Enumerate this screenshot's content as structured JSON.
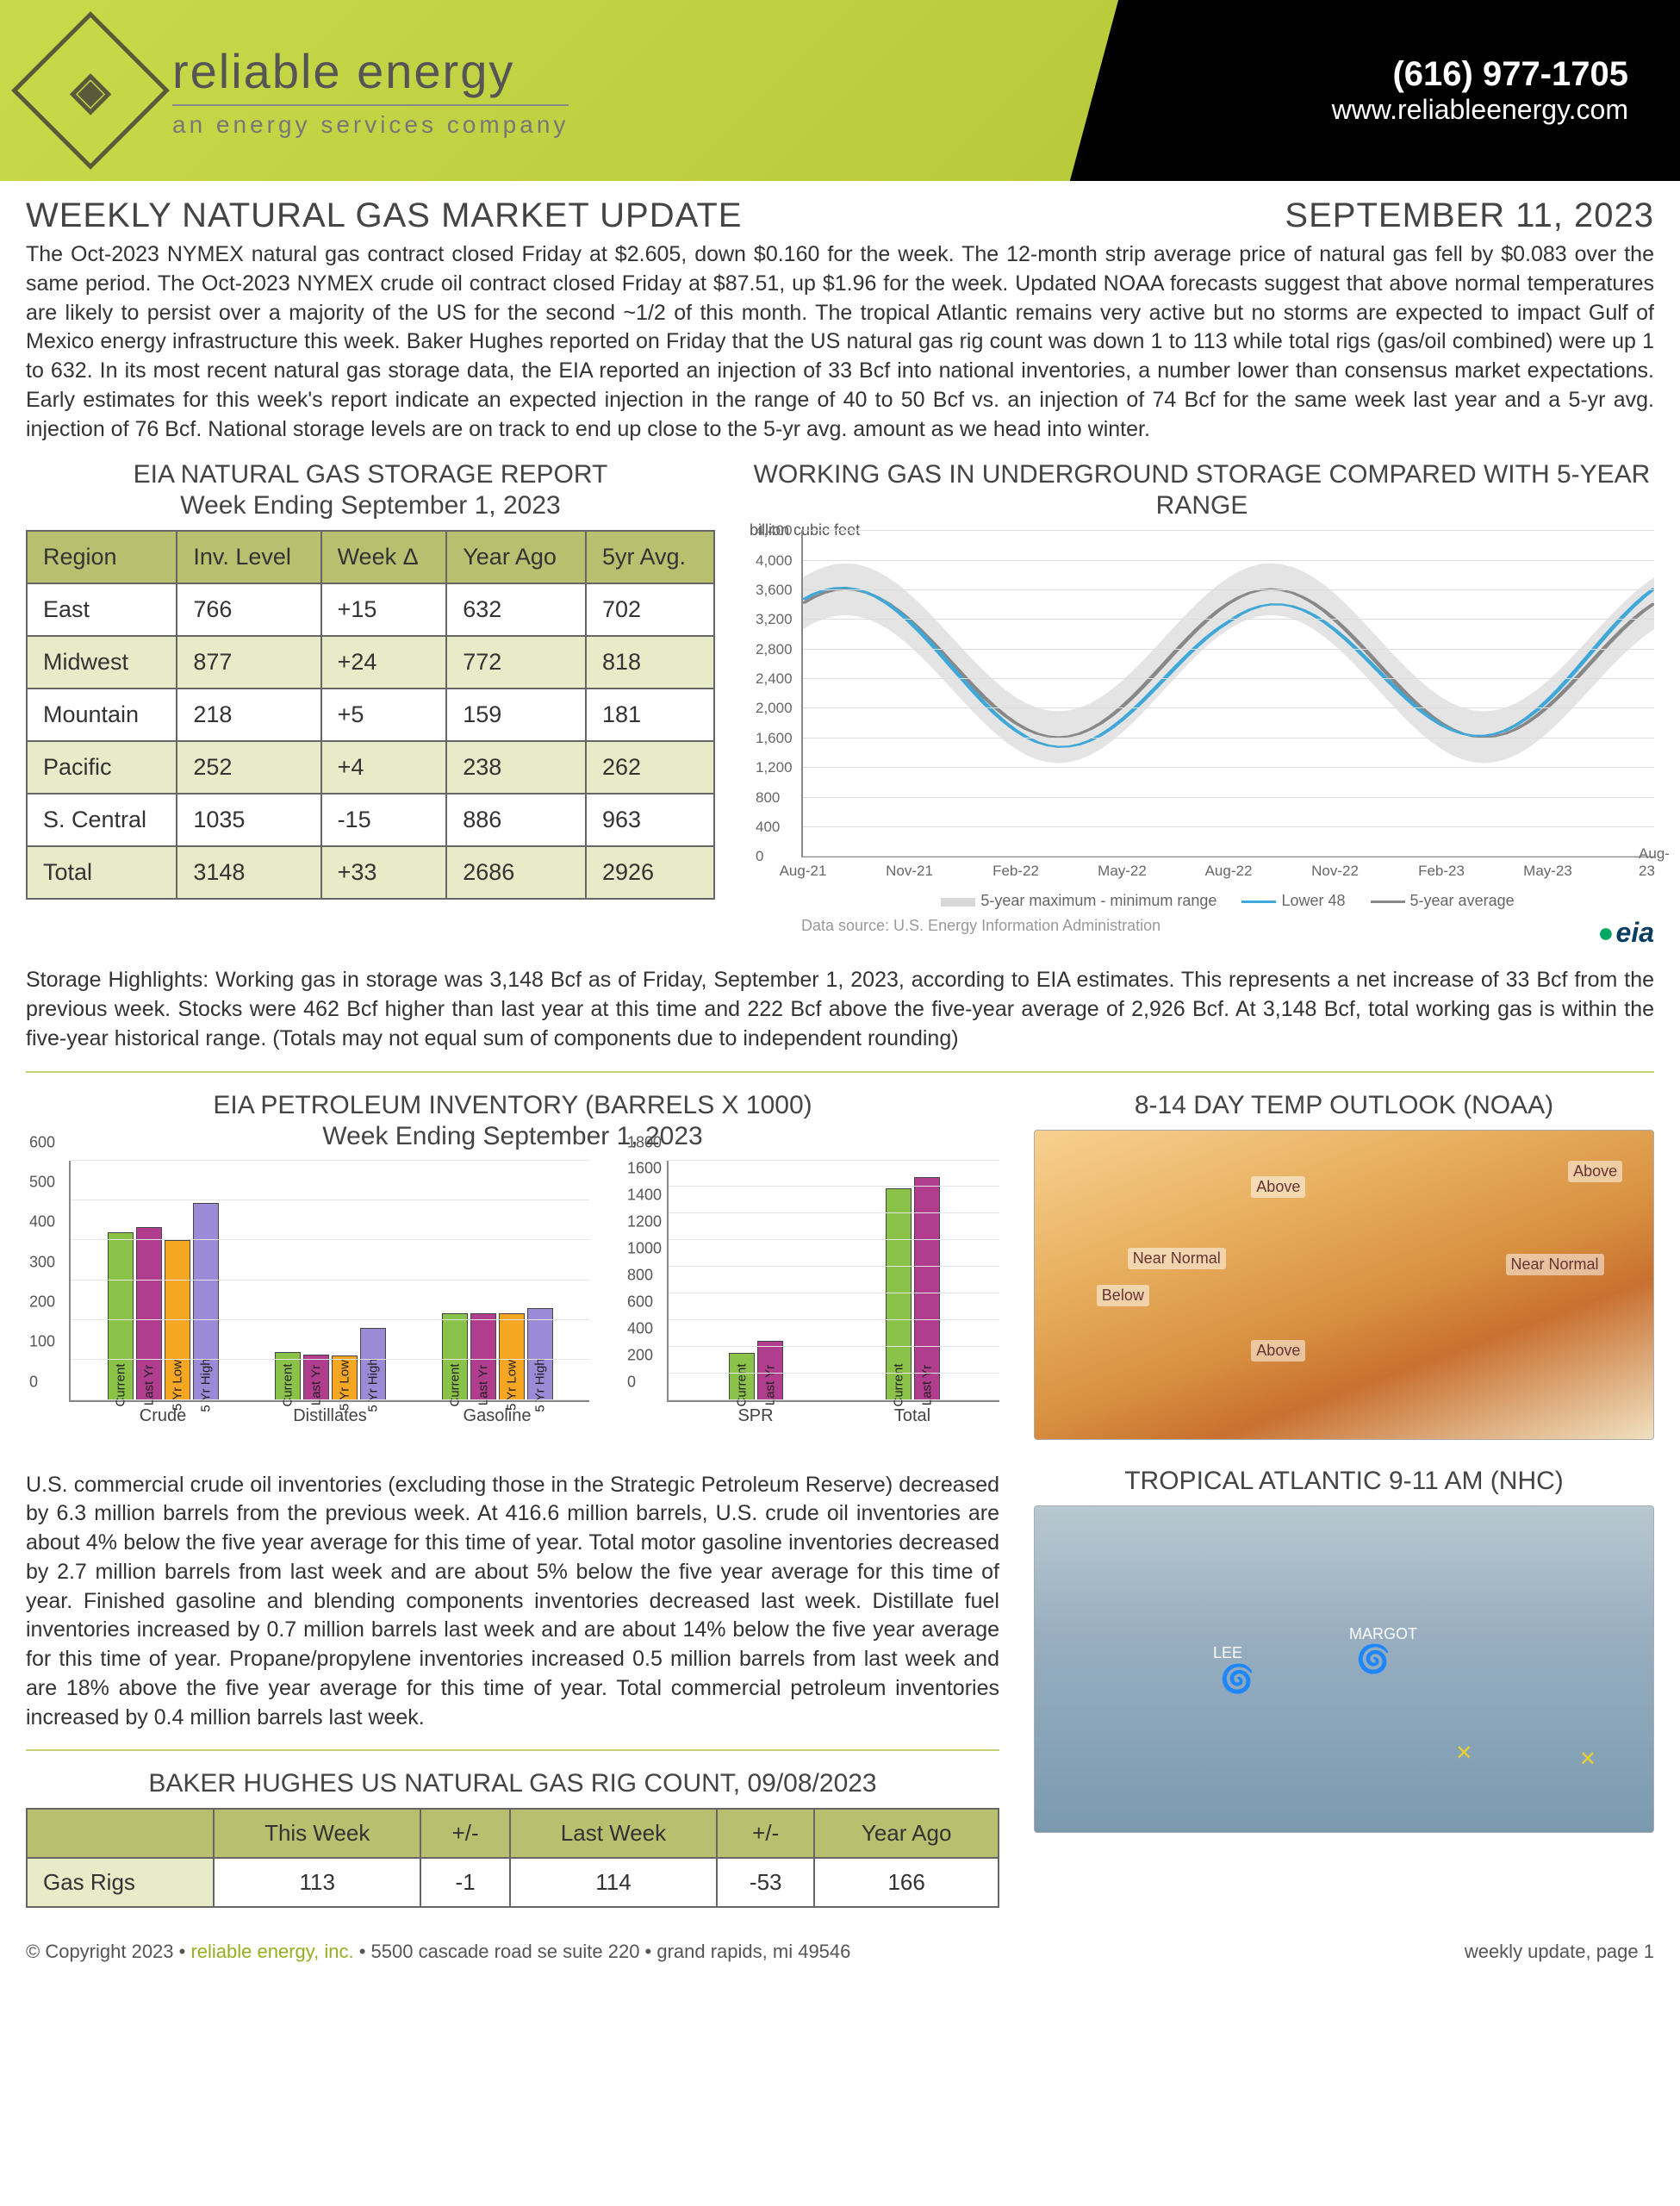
{
  "header": {
    "brand_name": "reliable energy",
    "brand_tag": "an energy services company",
    "phone": "(616) 977-1705",
    "website": "www.reliableenergy.com"
  },
  "title": "WEEKLY NATURAL GAS MARKET UPDATE",
  "date": "SEPTEMBER 11, 2023",
  "intro": "The Oct-2023 NYMEX natural gas contract closed Friday at $2.605, down $0.160 for the week. The 12-month strip average price of natural gas fell by $0.083 over the same period. The Oct-2023 NYMEX crude oil contract closed Friday at $87.51, up $1.96 for the week. Updated NOAA forecasts suggest that above normal temperatures are likely to persist over a majority of the US for the second ~1/2 of this month. The tropical Atlantic remains very active but no storms are expected to impact Gulf of Mexico energy infrastructure this week. Baker Hughes reported on Friday that the US natural gas rig count was down 1 to 113 while total rigs (gas/oil combined) were up 1 to 632. In its most recent natural gas storage data, the EIA reported an injection of 33 Bcf into national inventories, a number lower than consensus market expectations. Early estimates for this week's report indicate an expected injection in the range of 40 to 50 Bcf vs. an injection of 74 Bcf for the same week last year and a 5-yr avg. injection of 76 Bcf. National storage levels are on track to end up close to the 5-yr avg. amount as we head into winter.",
  "storage_report": {
    "title": "EIA NATURAL GAS STORAGE REPORT",
    "subtitle": "Week Ending September 1, 2023",
    "columns": [
      "Region",
      "Inv. Level",
      "Week Δ",
      "Year Ago",
      "5yr Avg."
    ],
    "rows": [
      [
        "East",
        "766",
        "+15",
        "632",
        "702"
      ],
      [
        "Midwest",
        "877",
        "+24",
        "772",
        "818"
      ],
      [
        "Mountain",
        "218",
        "+5",
        "159",
        "181"
      ],
      [
        "Pacific",
        "252",
        "+4",
        "238",
        "262"
      ],
      [
        "S. Central",
        "1035",
        "-15",
        "886",
        "963"
      ],
      [
        "Total",
        "3148",
        "+33",
        "2686",
        "2926"
      ]
    ]
  },
  "storage_chart": {
    "title": "WORKING GAS IN UNDERGROUND STORAGE COMPARED WITH 5-YEAR RANGE",
    "y_label": "billion cubic feet",
    "y_ticks": [
      0,
      400,
      800,
      1200,
      1600,
      2000,
      2400,
      2800,
      3200,
      3600,
      4000,
      4400
    ],
    "x_ticks": [
      "Aug-21",
      "Nov-21",
      "Feb-22",
      "May-22",
      "Aug-22",
      "Nov-22",
      "Feb-23",
      "May-23",
      "Aug-23"
    ],
    "range_color": "#d8d8d8",
    "lower48_color": "#3fa8d8",
    "avg_color": "#888888",
    "legend": [
      "5-year maximum - minimum range",
      "Lower 48",
      "5-year average"
    ],
    "source": "Data source:  U.S. Energy Information Administration",
    "eia": "eia"
  },
  "storage_highlights": "Storage Highlights: Working gas in storage was 3,148 Bcf as of Friday, September 1, 2023, according to EIA estimates. This represents a net increase of 33 Bcf from the previous week. Stocks were 462 Bcf higher than last year at this time and 222 Bcf above the five-year average of 2,926 Bcf. At 3,148 Bcf, total working gas is within the five-year historical range. (Totals may not equal sum of components due to independent rounding)",
  "petroleum": {
    "title": "EIA PETROLEUM INVENTORY (BARRELS X 1000)",
    "subtitle": "Week Ending September 1, 2023",
    "left_chart": {
      "y_max": 600,
      "y_step": 100,
      "groups": [
        "Crude",
        "Distillates",
        "Gasoline"
      ],
      "series": [
        "Current",
        "Last Yr",
        "5 Yr Low",
        "5 Yr High"
      ],
      "colors": [
        "#8bc34a",
        "#b13d8f",
        "#f5a623",
        "#9b8bd6"
      ],
      "values": [
        [
          417,
          430,
          398,
          490
        ],
        [
          118,
          112,
          110,
          178
        ],
        [
          215,
          215,
          215,
          228
        ]
      ]
    },
    "right_chart": {
      "y_max": 1800,
      "y_step": 200,
      "groups": [
        "SPR",
        "Total"
      ],
      "series": [
        "Current",
        "Last Yr"
      ],
      "colors": [
        "#8bc34a",
        "#b13d8f"
      ],
      "values": [
        [
          350,
          440
        ],
        [
          1580,
          1660
        ]
      ]
    },
    "text": "U.S. commercial crude oil inventories (excluding those in the Strategic Petroleum Reserve) decreased by 6.3 million barrels from the previous week. At 416.6 million barrels, U.S. crude oil inventories are about 4% below the five year average for this time of year. Total motor gasoline inventories decreased by 2.7 million barrels from last week and are about 5% below the five year average for this time of year. Finished gasoline and blending components inventories decreased last week. Distillate fuel inventories increased by 0.7 million barrels last week and are about 14% below the five year average for this time of year. Propane/propylene inventories increased 0.5 million barrels from last week and are 18% above the five year average for this time of year. Total commercial petroleum inventories increased by 0.4 million barrels last week."
  },
  "temp_outlook": {
    "title": "8-14 DAY TEMP OUTLOOK (NOAA)",
    "labels": [
      "Above",
      "Near Normal",
      "Below"
    ]
  },
  "tropical": {
    "title": "TROPICAL ATLANTIC 9-11 AM (NHC)",
    "storms": [
      "LEE",
      "MARGOT"
    ]
  },
  "rig_count": {
    "title": "BAKER HUGHES US NATURAL GAS RIG COUNT, 09/08/2023",
    "columns": [
      "",
      "This Week",
      "+/-",
      "Last Week",
      "+/-",
      "Year Ago"
    ],
    "rows": [
      [
        "Gas Rigs",
        "113",
        "-1",
        "114",
        "-53",
        "166"
      ]
    ]
  },
  "footer": {
    "copyright": "© Copyright 2023  •  ",
    "company": "reliable energy, inc.",
    "address": "  •  5500 cascade road se  suite 220  •  grand rapids, mi  49546",
    "page": "weekly update, page 1"
  }
}
